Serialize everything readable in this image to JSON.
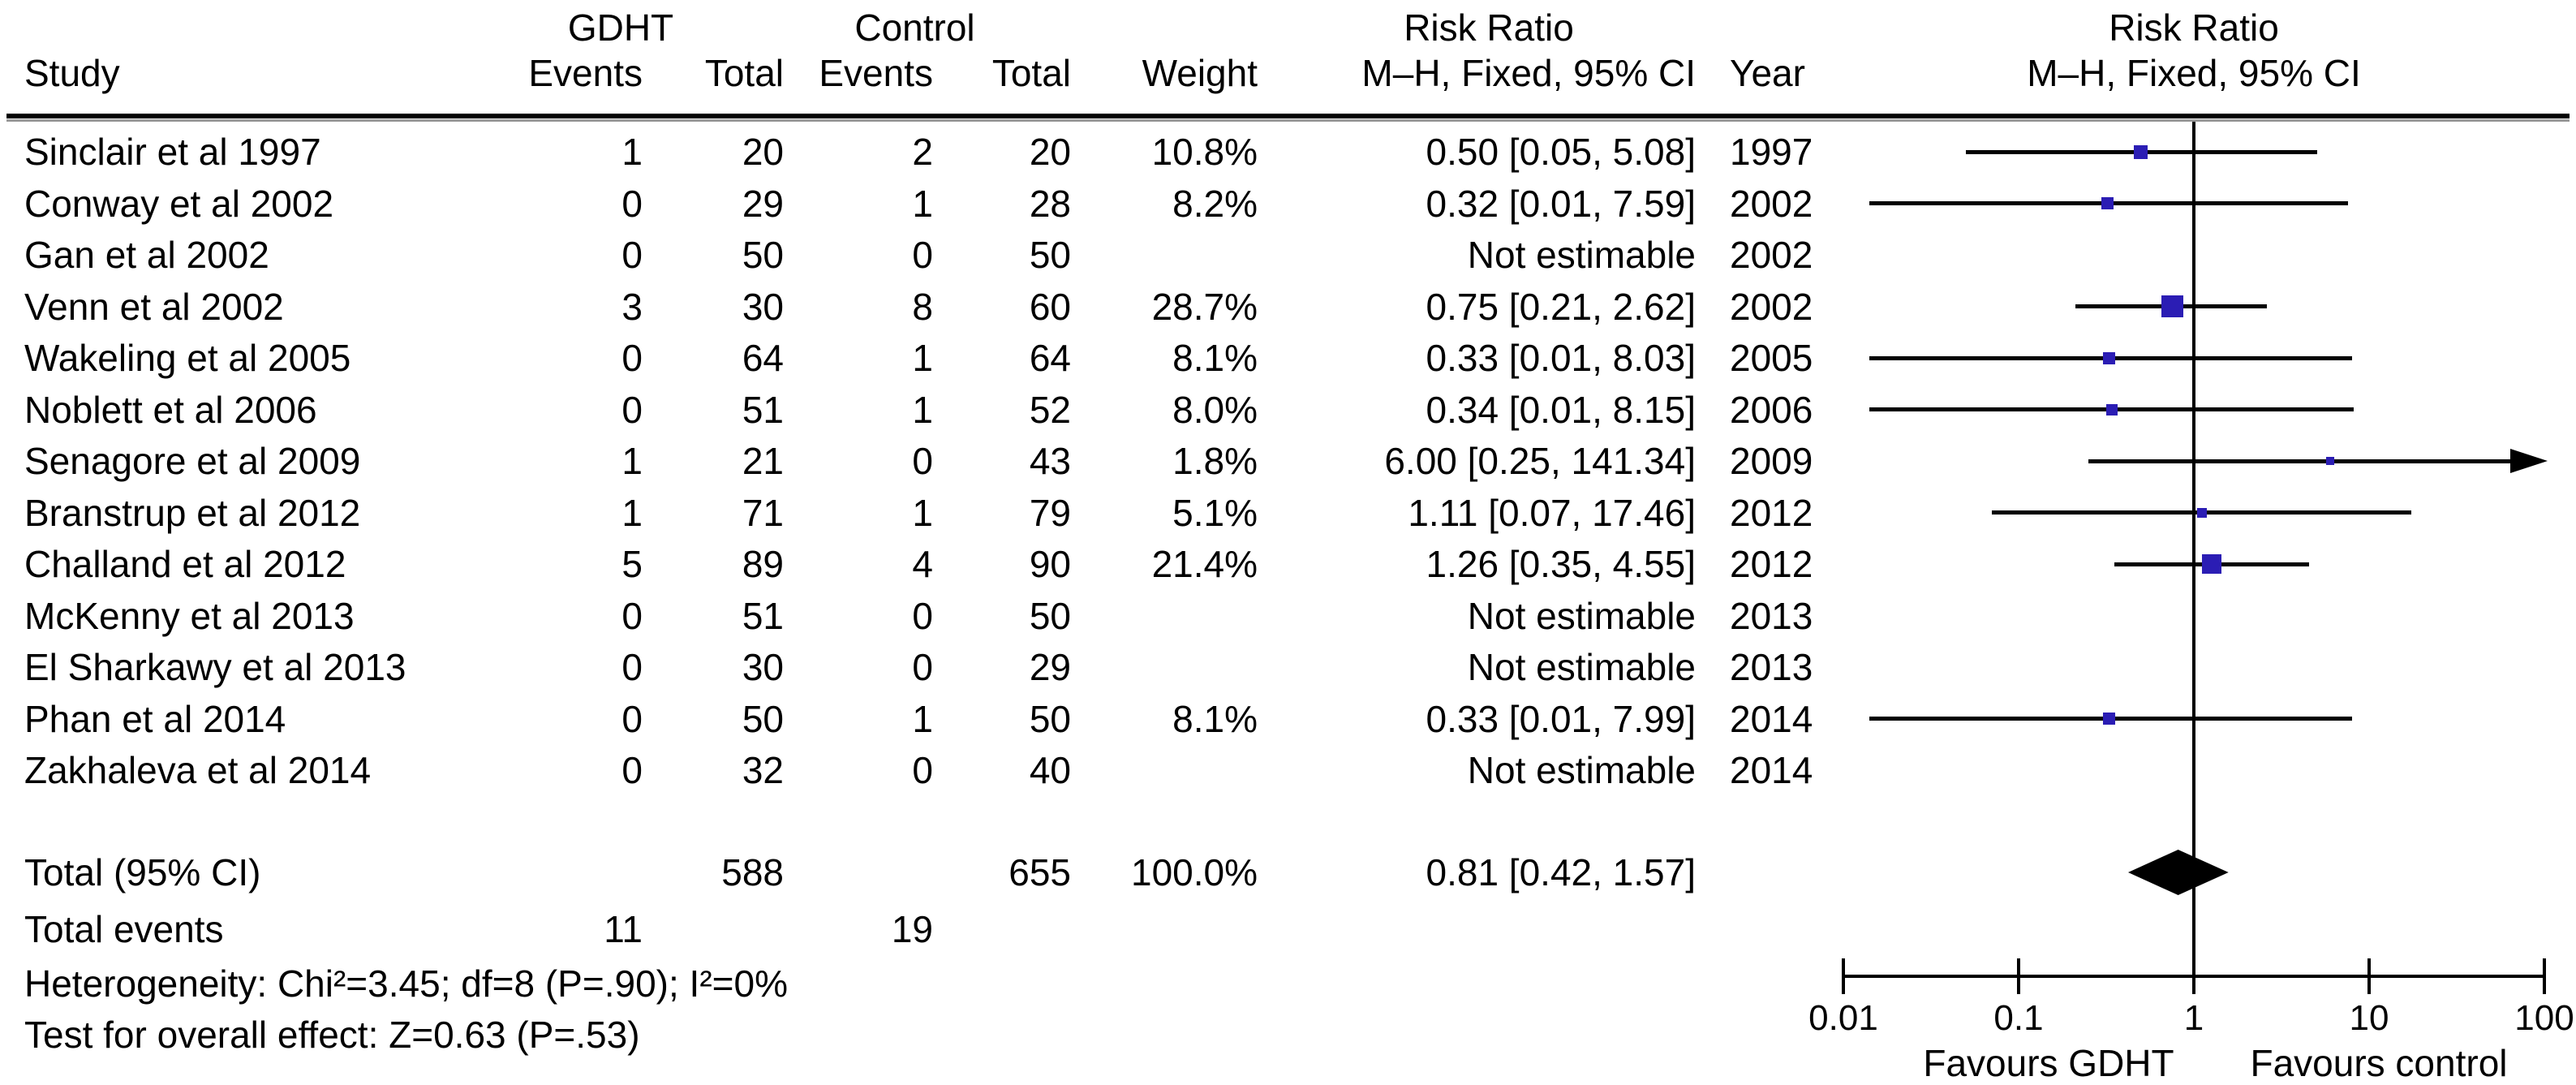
{
  "header": {
    "group_gdht": "GDHT",
    "group_control": "Control",
    "risk_ratio_text_col": "Risk Ratio",
    "risk_ratio_plot_col": "Risk Ratio",
    "study": "Study",
    "gdht_events": "Events",
    "gdht_total": "Total",
    "control_events": "Events",
    "control_total": "Total",
    "weight": "Weight",
    "mh_fixed_ci_text_col": "M–H, Fixed, 95% CI",
    "year": "Year",
    "mh_fixed_ci_plot_col": "M–H, Fixed, 95% CI"
  },
  "totals": {
    "label": "Total (95% CI)",
    "gdht_total": "588",
    "control_total": "655",
    "weight": "100.0%",
    "rr_ci_text": "0.81 [0.42, 1.57]",
    "events_label": "Total events",
    "gdht_events": "11",
    "control_events": "19"
  },
  "footnotes": {
    "heterogeneity": "Heterogeneity: Chi²=3.45; df=8 (P=.90); I²=0%",
    "overall_effect": "Test for overall effect: Z=0.63 (P=.53)"
  },
  "chart_data": {
    "type": "scatter",
    "variant": "forest-plot",
    "x_scale": "log10",
    "x_range": [
      0.01,
      100
    ],
    "x_ticks": [
      0.01,
      0.1,
      1,
      10,
      100
    ],
    "x_tick_labels": [
      "0.01",
      "0.1",
      "1",
      "10",
      "100"
    ],
    "favours_left": "Favours GDHT",
    "favours_right": "Favours control",
    "marker_color": "#2b1db4",
    "studies": [
      {
        "study": "Sinclair et al 1997",
        "year": "1997",
        "gdht_events": "1",
        "gdht_total": "20",
        "control_events": "2",
        "control_total": "20",
        "weight": "10.8%",
        "weight_pct": 10.8,
        "rr_ci_text": "0.50 [0.05, 5.08]",
        "rr": 0.5,
        "ci_lo": 0.05,
        "ci_hi": 5.08,
        "estimable": true,
        "arrow_right": false
      },
      {
        "study": "Conway et al 2002",
        "year": "2002",
        "gdht_events": "0",
        "gdht_total": "29",
        "control_events": "1",
        "control_total": "28",
        "weight": "8.2%",
        "weight_pct": 8.2,
        "rr_ci_text": "0.32 [0.01, 7.59]",
        "rr": 0.32,
        "ci_lo": 0.01,
        "ci_lo_drawn": 0.014,
        "ci_hi": 7.59,
        "estimable": true,
        "arrow_right": false
      },
      {
        "study": "Gan et al 2002",
        "year": "2002",
        "gdht_events": "0",
        "gdht_total": "50",
        "control_events": "0",
        "control_total": "50",
        "weight": "",
        "rr_ci_text": "Not estimable",
        "estimable": false
      },
      {
        "study": "Venn et al 2002",
        "year": "2002",
        "gdht_events": "3",
        "gdht_total": "30",
        "control_events": "8",
        "control_total": "60",
        "weight": "28.7%",
        "weight_pct": 28.7,
        "rr_ci_text": "0.75 [0.21, 2.62]",
        "rr": 0.75,
        "ci_lo": 0.21,
        "ci_hi": 2.62,
        "estimable": true,
        "arrow_right": false
      },
      {
        "study": "Wakeling et al 2005",
        "year": "2005",
        "gdht_events": "0",
        "gdht_total": "64",
        "control_events": "1",
        "control_total": "64",
        "weight": "8.1%",
        "weight_pct": 8.1,
        "rr_ci_text": "0.33 [0.01, 8.03]",
        "rr": 0.33,
        "ci_lo": 0.01,
        "ci_lo_drawn": 0.014,
        "ci_hi": 8.03,
        "estimable": true,
        "arrow_right": false
      },
      {
        "study": "Noblett et al 2006",
        "year": "2006",
        "gdht_events": "0",
        "gdht_total": "51",
        "control_events": "1",
        "control_total": "52",
        "weight": "8.0%",
        "weight_pct": 8.0,
        "rr_ci_text": "0.34 [0.01, 8.15]",
        "rr": 0.34,
        "ci_lo": 0.01,
        "ci_lo_drawn": 0.014,
        "ci_hi": 8.15,
        "estimable": true,
        "arrow_right": false
      },
      {
        "study": "Senagore et al 2009",
        "year": "2009",
        "gdht_events": "1",
        "gdht_total": "21",
        "control_events": "0",
        "control_total": "43",
        "weight": "1.8%",
        "weight_pct": 1.8,
        "rr_ci_text": "6.00 [0.25, 141.34]",
        "rr": 6.0,
        "ci_lo": 0.25,
        "ci_hi": 141.34,
        "ci_hi_drawn": 100,
        "estimable": true,
        "arrow_right": true
      },
      {
        "study": "Branstrup et al 2012",
        "year": "2012",
        "gdht_events": "1",
        "gdht_total": "71",
        "control_events": "1",
        "control_total": "79",
        "weight": "5.1%",
        "weight_pct": 5.1,
        "rr_ci_text": "1.11 [0.07, 17.46]",
        "rr": 1.11,
        "ci_lo": 0.07,
        "ci_hi": 17.46,
        "estimable": true,
        "arrow_right": false
      },
      {
        "study": "Challand et al 2012",
        "year": "2012",
        "gdht_events": "5",
        "gdht_total": "89",
        "control_events": "4",
        "control_total": "90",
        "weight": "21.4%",
        "weight_pct": 21.4,
        "rr_ci_text": "1.26 [0.35, 4.55]",
        "rr": 1.26,
        "ci_lo": 0.35,
        "ci_hi": 4.55,
        "estimable": true,
        "arrow_right": false
      },
      {
        "study": "McKenny et al 2013",
        "year": "2013",
        "gdht_events": "0",
        "gdht_total": "51",
        "control_events": "0",
        "control_total": "50",
        "weight": "",
        "rr_ci_text": "Not estimable",
        "estimable": false
      },
      {
        "study": "El Sharkawy et al 2013",
        "year": "2013",
        "gdht_events": "0",
        "gdht_total": "30",
        "control_events": "0",
        "control_total": "29",
        "weight": "",
        "rr_ci_text": "Not estimable",
        "estimable": false
      },
      {
        "study": "Phan et al 2014",
        "year": "2014",
        "gdht_events": "0",
        "gdht_total": "50",
        "control_events": "1",
        "control_total": "50",
        "weight": "8.1%",
        "weight_pct": 8.1,
        "rr_ci_text": "0.33 [0.01, 7.99]",
        "rr": 0.33,
        "ci_lo": 0.01,
        "ci_lo_drawn": 0.014,
        "ci_hi": 7.99,
        "estimable": true,
        "arrow_right": false
      },
      {
        "study": "Zakhaleva et al 2014",
        "year": "2014",
        "gdht_events": "0",
        "gdht_total": "32",
        "control_events": "0",
        "control_total": "40",
        "weight": "",
        "rr_ci_text": "Not estimable",
        "estimable": false
      }
    ],
    "summary": {
      "rr": 0.81,
      "ci_lo": 0.42,
      "ci_hi": 1.57,
      "rr_ci_text": "0.81 [0.42, 1.57]"
    }
  }
}
